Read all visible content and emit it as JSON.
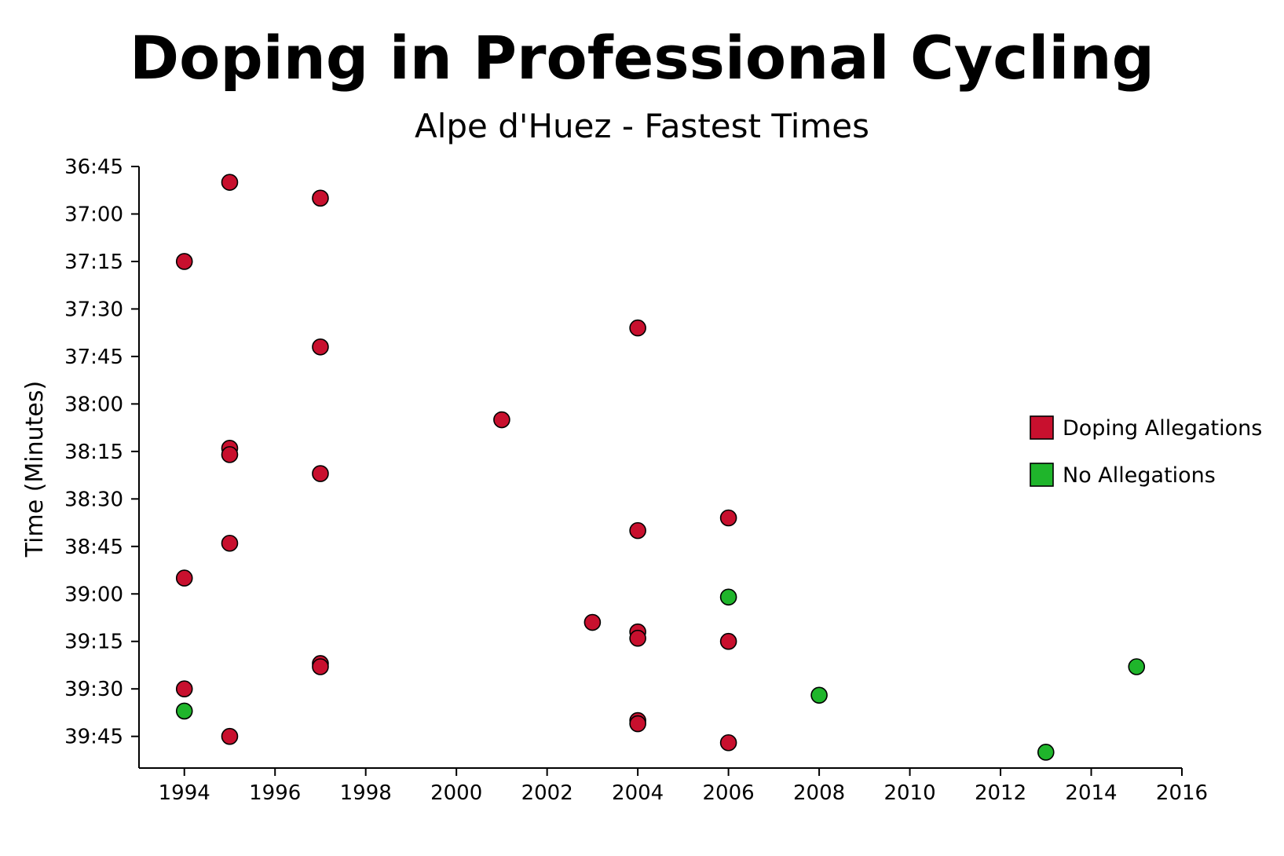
{
  "chart_data": {
    "type": "scatter",
    "title": "Doping in Professional Cycling",
    "subtitle": "Alpe d'Huez - Fastest Times",
    "ylabel": "Time (Minutes)",
    "xlabel": "",
    "xlim": [
      1993,
      2016
    ],
    "ylim": [
      "36:45",
      "39:55"
    ],
    "y_inverted": true,
    "x_ticks": [
      "1994",
      "1996",
      "1998",
      "2000",
      "2002",
      "2004",
      "2006",
      "2008",
      "2010",
      "2012",
      "2014",
      "2016"
    ],
    "y_ticks": [
      "36:45",
      "37:00",
      "37:15",
      "37:30",
      "37:45",
      "38:00",
      "38:15",
      "38:30",
      "38:45",
      "39:00",
      "39:15",
      "39:30",
      "39:45"
    ],
    "grid": false,
    "legend_position": "right",
    "series": [
      {
        "name": "Doping Allegations",
        "color": "#c8102e",
        "points": [
          {
            "x": 1995,
            "y": "36:50"
          },
          {
            "x": 1997,
            "y": "36:55"
          },
          {
            "x": 1994,
            "y": "37:15"
          },
          {
            "x": 2004,
            "y": "37:36"
          },
          {
            "x": 1997,
            "y": "37:42"
          },
          {
            "x": 2001,
            "y": "38:05"
          },
          {
            "x": 1995,
            "y": "38:14"
          },
          {
            "x": 1995,
            "y": "38:16"
          },
          {
            "x": 1997,
            "y": "38:22"
          },
          {
            "x": 2006,
            "y": "38:36"
          },
          {
            "x": 2004,
            "y": "38:40"
          },
          {
            "x": 1995,
            "y": "38:44"
          },
          {
            "x": 1994,
            "y": "38:55"
          },
          {
            "x": 2003,
            "y": "39:09"
          },
          {
            "x": 2004,
            "y": "39:12"
          },
          {
            "x": 2004,
            "y": "39:14"
          },
          {
            "x": 2006,
            "y": "39:15"
          },
          {
            "x": 1997,
            "y": "39:22"
          },
          {
            "x": 1997,
            "y": "39:23"
          },
          {
            "x": 1994,
            "y": "39:30"
          },
          {
            "x": 2004,
            "y": "39:40"
          },
          {
            "x": 2004,
            "y": "39:41"
          },
          {
            "x": 1995,
            "y": "39:45"
          },
          {
            "x": 2006,
            "y": "39:47"
          }
        ]
      },
      {
        "name": "No Allegations",
        "color": "#1fb52b",
        "points": [
          {
            "x": 2006,
            "y": "39:01"
          },
          {
            "x": 2015,
            "y": "39:23"
          },
          {
            "x": 2008,
            "y": "39:32"
          },
          {
            "x": 1994,
            "y": "39:37"
          },
          {
            "x": 2013,
            "y": "39:50"
          }
        ]
      }
    ]
  }
}
